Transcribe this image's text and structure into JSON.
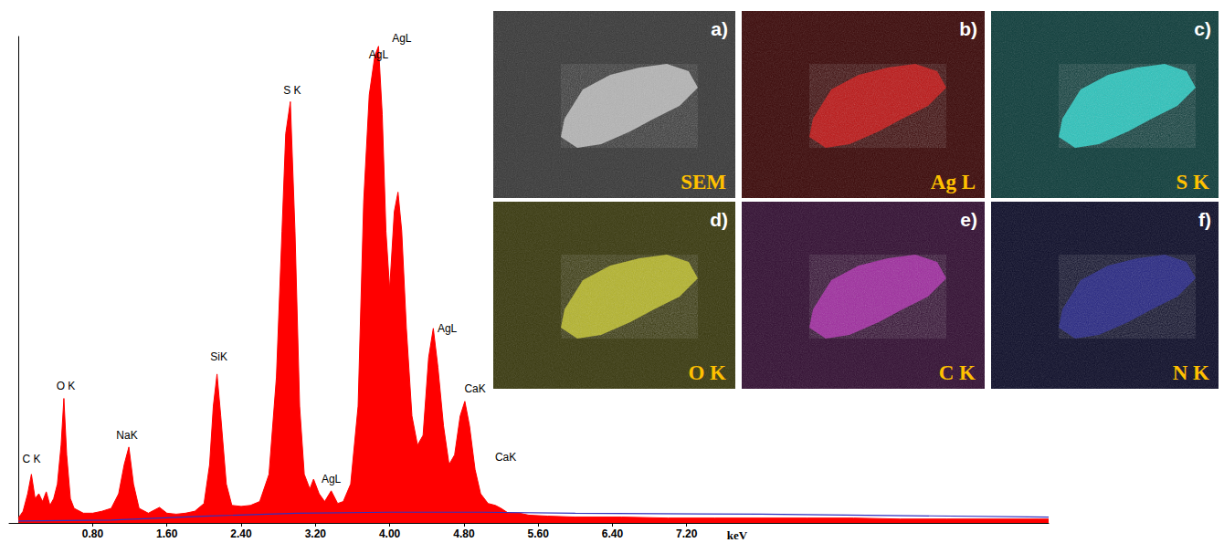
{
  "chart_data": {
    "type": "area",
    "x_label": "keV",
    "xlim": [
      -0.1,
      11.1
    ],
    "xticks": [
      {
        "value": 0.8,
        "label": "0.80"
      },
      {
        "value": 1.6,
        "label": "1.60"
      },
      {
        "value": 2.4,
        "label": "2.40"
      },
      {
        "value": 3.2,
        "label": "3.20"
      },
      {
        "value": 4,
        "label": "4.00"
      },
      {
        "value": 4.8,
        "label": "4.80"
      },
      {
        "value": 5.6,
        "label": "5.60"
      },
      {
        "value": 6.4,
        "label": "6.40"
      },
      {
        "value": 7.2,
        "label": "7.20"
      }
    ],
    "ylim": [
      0,
      500
    ],
    "tick_labels": "x",
    "grid": false,
    "series": [
      {
        "type": "area",
        "color": "#ff0000",
        "x": [
          0,
          0.05,
          0.1,
          0.14,
          0.18,
          0.22,
          0.26,
          0.3,
          0.34,
          0.38,
          0.42,
          0.46,
          0.49,
          0.52,
          0.56,
          0.6,
          0.7,
          0.8,
          0.9,
          1,
          1.08,
          1.14,
          1.19,
          1.24,
          1.3,
          1.4,
          1.52,
          1.6,
          1.7,
          1.8,
          1.9,
          2,
          2.06,
          2.1,
          2.14,
          2.18,
          2.24,
          2.3,
          2.4,
          2.5,
          2.6,
          2.7,
          2.78,
          2.84,
          2.88,
          2.93,
          2.98,
          3.03,
          3.08,
          3.14,
          3.18,
          3.24,
          3.3,
          3.37,
          3.44,
          3.5,
          3.58,
          3.66,
          3.72,
          3.78,
          3.84,
          3.88,
          3.92,
          3.96,
          4,
          4.05,
          4.09,
          4.13,
          4.18,
          4.24,
          4.3,
          4.36,
          4.42,
          4.47,
          4.52,
          4.58,
          4.64,
          4.7,
          4.76,
          4.81,
          4.86,
          4.92,
          4.98,
          5.06,
          5.14,
          5.2,
          5.28,
          5.4,
          5.5,
          5.7,
          6,
          6.5,
          7,
          7.5,
          8,
          8.5,
          9,
          9.5,
          10,
          10.5,
          11,
          11.1
        ],
        "values": [
          5,
          12,
          30,
          50,
          25,
          30,
          22,
          32,
          18,
          25,
          40,
          80,
          128,
          70,
          25,
          15,
          10,
          10,
          12,
          15,
          30,
          60,
          78,
          40,
          15,
          10,
          16,
          10,
          9,
          10,
          12,
          20,
          60,
          120,
          153,
          110,
          40,
          18,
          17,
          18,
          22,
          50,
          150,
          300,
          400,
          433,
          300,
          120,
          50,
          35,
          45,
          30,
          22,
          33,
          20,
          22,
          40,
          120,
          330,
          440,
          480,
          490,
          420,
          300,
          240,
          320,
          340,
          300,
          200,
          110,
          80,
          90,
          170,
          200,
          160,
          100,
          60,
          70,
          110,
          125,
          100,
          55,
          30,
          20,
          18,
          15,
          10,
          10,
          8,
          7,
          6,
          6,
          5,
          5,
          5,
          5,
          5,
          4,
          4,
          4,
          4,
          4
        ]
      },
      {
        "type": "line",
        "color": "#3030c0",
        "x": [
          0,
          1,
          2,
          3,
          4,
          5,
          6,
          8,
          11.1
        ],
        "values": [
          2,
          3,
          7,
          10,
          11,
          11,
          10,
          9,
          6
        ]
      }
    ],
    "annotations": [
      {
        "text": "C K",
        "x": 0.14,
        "y": 66
      },
      {
        "text": "O K",
        "x": 0.51,
        "y": 141
      },
      {
        "text": "NaK",
        "x": 1.17,
        "y": 90
      },
      {
        "text": "SiK",
        "x": 2.16,
        "y": 171
      },
      {
        "text": "S K",
        "x": 2.95,
        "y": 445
      },
      {
        "text": "AgL",
        "x": 3.37,
        "y": 45
      },
      {
        "text": "AgL",
        "x": 3.88,
        "y": 481
      },
      {
        "text": "AgL",
        "x": 4.13,
        "y": 498
      },
      {
        "text": "AgL",
        "x": 4.62,
        "y": 200
      },
      {
        "text": "CaK",
        "x": 4.92,
        "y": 138
      },
      {
        "text": "CaK",
        "x": 5.25,
        "y": 68
      }
    ]
  },
  "panels": [
    {
      "letter": "a)",
      "label": "SEM",
      "color": "#c8c8c8"
    },
    {
      "letter": "b)",
      "label": "Ag L",
      "color": "#d01818"
    },
    {
      "letter": "c)",
      "label": "S K",
      "color": "#30d8d0"
    },
    {
      "letter": "d)",
      "label": "O K",
      "color": "#c8c830"
    },
    {
      "letter": "e)",
      "label": "C K",
      "color": "#b030b0"
    },
    {
      "letter": "f)",
      "label": "N K",
      "color": "#2a2a90"
    }
  ]
}
